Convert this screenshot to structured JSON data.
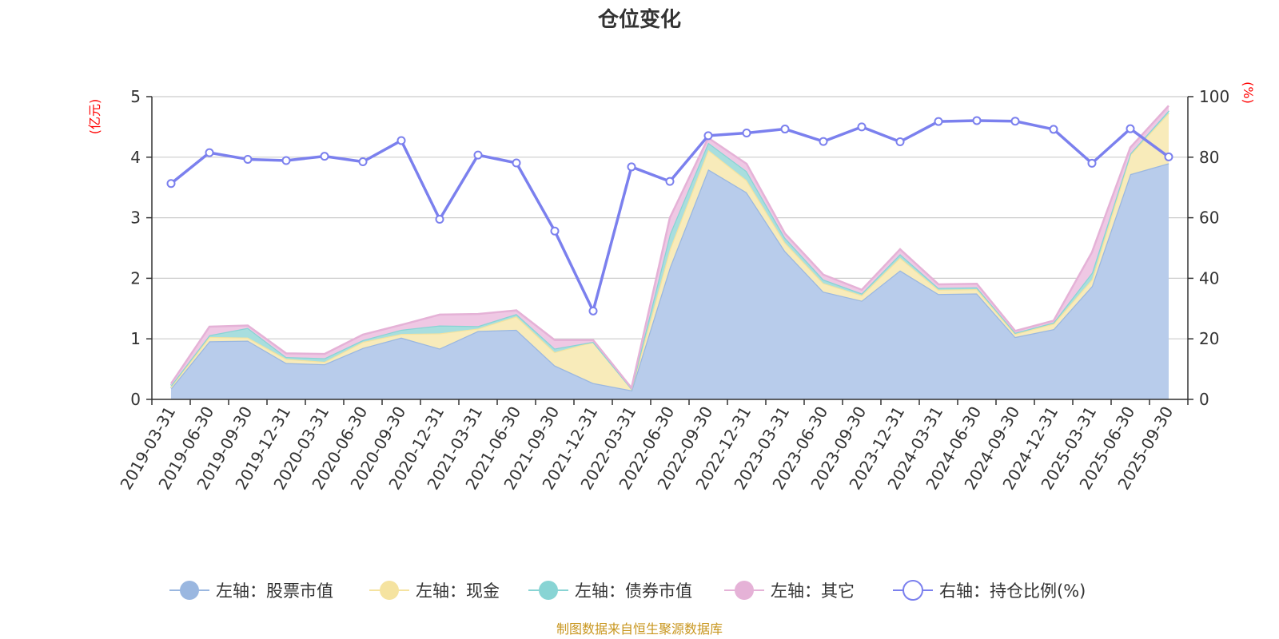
{
  "chart_data": {
    "type": "area",
    "title": "仓位变化",
    "left_axis_unit": "(亿元)",
    "right_axis_unit": "(%)",
    "left_ylim": [
      0,
      5
    ],
    "left_ticks": [
      "0",
      "1",
      "2",
      "3",
      "4",
      "5"
    ],
    "right_ylim": [
      0,
      100
    ],
    "right_ticks": [
      "0",
      "20",
      "40",
      "60",
      "80",
      "100"
    ],
    "grid": true,
    "legend_position": "bottom",
    "categories": [
      "2019-03-31",
      "2019-06-30",
      "2019-09-30",
      "2019-12-31",
      "2020-03-31",
      "2020-06-30",
      "2020-09-30",
      "2020-12-31",
      "2021-03-31",
      "2021-06-30",
      "2021-09-30",
      "2021-12-31",
      "2022-03-31",
      "2022-06-30",
      "2022-09-30",
      "2022-12-31",
      "2023-03-31",
      "2023-06-30",
      "2023-09-30",
      "2023-12-31",
      "2024-03-31",
      "2024-06-30",
      "2024-09-30",
      "2024-12-31",
      "2025-03-31",
      "2025-06-30",
      "2025-09-30"
    ],
    "series": [
      {
        "name": "左轴：股票市值",
        "axis": "left",
        "kind": "stacked-area",
        "color": "#9ab7e0",
        "fill": "#b8cceb",
        "values": [
          0.18,
          0.96,
          0.97,
          0.6,
          0.58,
          0.85,
          1.02,
          0.84,
          1.13,
          1.15,
          0.56,
          0.27,
          0.15,
          2.18,
          3.8,
          3.42,
          2.45,
          1.78,
          1.63,
          2.13,
          1.74,
          1.75,
          1.03,
          1.16,
          1.87,
          3.72,
          3.9
        ]
      },
      {
        "name": "左轴：现金",
        "axis": "left",
        "kind": "stacked-area",
        "color": "#f5e3a0",
        "fill": "#f8ebba",
        "values": [
          0.03,
          0.07,
          0.05,
          0.07,
          0.04,
          0.1,
          0.06,
          0.25,
          0.04,
          0.22,
          0.22,
          0.68,
          0.03,
          0.3,
          0.32,
          0.2,
          0.14,
          0.14,
          0.09,
          0.21,
          0.07,
          0.07,
          0.05,
          0.09,
          0.11,
          0.32,
          0.83
        ]
      },
      {
        "name": "左轴：债券市值",
        "axis": "left",
        "kind": "stacked-area",
        "color": "#88d4d4",
        "fill": "#a8dede",
        "values": [
          0.02,
          0.03,
          0.16,
          0.03,
          0.06,
          0.03,
          0.07,
          0.13,
          0.04,
          0.04,
          0.06,
          0.0,
          0.0,
          0.25,
          0.12,
          0.15,
          0.08,
          0.06,
          0.03,
          0.06,
          0.03,
          0.03,
          0.02,
          0.02,
          0.11,
          0.02,
          0.04
        ]
      },
      {
        "name": "左轴：其它",
        "axis": "left",
        "kind": "stacked-area",
        "color": "#e5b2d7",
        "fill": "#efc8e4",
        "values": [
          0.03,
          0.14,
          0.04,
          0.06,
          0.07,
          0.09,
          0.08,
          0.18,
          0.2,
          0.06,
          0.14,
          0.03,
          0.01,
          0.27,
          0.08,
          0.12,
          0.07,
          0.08,
          0.06,
          0.08,
          0.06,
          0.06,
          0.03,
          0.03,
          0.34,
          0.1,
          0.08
        ]
      },
      {
        "name": "右轴：持仓比例(%)",
        "axis": "right",
        "kind": "line",
        "color": "#7b80ee",
        "values": [
          71.3,
          81.5,
          79.3,
          78.9,
          80.3,
          78.5,
          85.5,
          59.5,
          80.7,
          78.1,
          55.6,
          29.2,
          76.8,
          72.0,
          87.1,
          88.0,
          89.3,
          85.2,
          90.0,
          85.1,
          91.8,
          92.1,
          91.9,
          89.2,
          78.0,
          89.4,
          80.1
        ]
      }
    ]
  },
  "footer": {
    "source": "制图数据来自恒生聚源数据库"
  }
}
